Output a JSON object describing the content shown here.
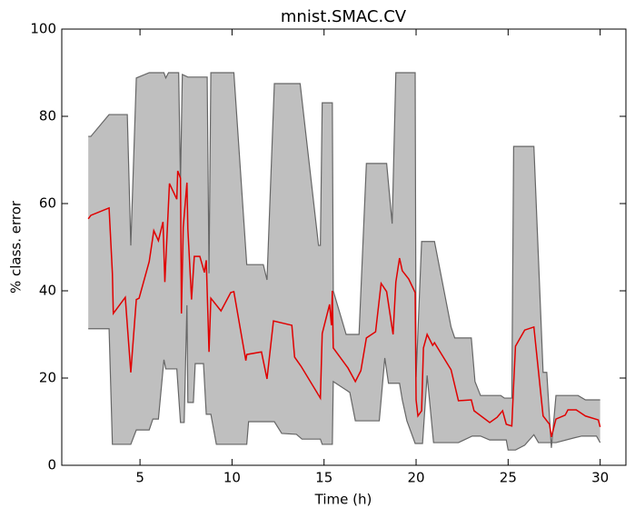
{
  "chart_data": {
    "type": "band-line",
    "title": "mnist.SMAC.CV",
    "xlabel": "Time (h)",
    "ylabel": "% class. error",
    "xlim": [
      0.75,
      31.4
    ],
    "ylim": [
      0,
      100
    ],
    "xticks": [
      5,
      10,
      15,
      20,
      25,
      30
    ],
    "yticks": [
      0,
      20,
      40,
      60,
      80,
      100
    ],
    "grid": false,
    "band_color": "#bfbfbf",
    "band_edge_color": "#666666",
    "upper": {
      "x": [
        2.19,
        2.33,
        3.32,
        4.31,
        4.5,
        4.8,
        5.5,
        6.3,
        6.4,
        6.55,
        7.1,
        7.2,
        7.3,
        7.6,
        8.65,
        8.75,
        8.85,
        10.1,
        10.8,
        11.7,
        11.9,
        12.3,
        13.7,
        14.7,
        14.8,
        14.9,
        15.45,
        15.5,
        16.2,
        16.9,
        17.3,
        18.4,
        18.7,
        18.9,
        19.95,
        20.0,
        20.3,
        21.0,
        21.9,
        22.1,
        23.0,
        23.2,
        23.5,
        24.6,
        24.8,
        25.2,
        25.3,
        26.4,
        26.9,
        27.1,
        27.35,
        27.6,
        28.8,
        29.2,
        30.0
      ],
      "values": [
        75.4,
        75.4,
        80.4,
        80.4,
        50.4,
        88.8,
        90,
        90,
        88.8,
        90,
        90,
        65,
        89.6,
        89,
        89,
        44,
        90,
        90,
        46,
        46,
        42.5,
        87.5,
        87.5,
        50.4,
        50.4,
        83.1,
        83.1,
        40,
        30,
        30,
        69.2,
        69.2,
        55.4,
        90,
        90,
        20.2,
        51.3,
        51.3,
        31.7,
        29.2,
        29.2,
        19.2,
        16,
        16,
        15.4,
        15.4,
        73.1,
        73.1,
        21.3,
        21.3,
        4,
        16,
        16,
        15,
        15
      ]
    },
    "lower": {
      "x": [
        2.19,
        3.32,
        3.5,
        4.5,
        4.8,
        5.5,
        5.7,
        6.0,
        6.3,
        6.4,
        7.0,
        7.2,
        7.4,
        7.55,
        7.6,
        7.9,
        8.0,
        8.45,
        8.6,
        8.85,
        9.15,
        10.8,
        10.9,
        12.3,
        12.7,
        13.5,
        13.8,
        14.8,
        14.9,
        15.45,
        15.5,
        16.4,
        16.7,
        18.0,
        18.3,
        18.5,
        19.1,
        19.25,
        19.5,
        19.95,
        20.35,
        20.6,
        20.95,
        22.3,
        23.05,
        23.5,
        24.0,
        24.9,
        25.0,
        25.4,
        25.9,
        26.4,
        26.65,
        27.6,
        28.6,
        29.0,
        29.8,
        30.0
      ],
      "values": [
        31.3,
        31.3,
        4.8,
        4.8,
        8.1,
        8.1,
        10.6,
        10.6,
        24.2,
        22.1,
        22.1,
        9.8,
        9.8,
        36.7,
        14.4,
        14.4,
        23.3,
        23.3,
        11.7,
        11.7,
        4.8,
        4.8,
        10,
        10,
        7.3,
        7.1,
        6,
        6,
        4.8,
        4.8,
        19.2,
        16.7,
        10.2,
        10.2,
        24.6,
        18.8,
        18.8,
        15,
        10.2,
        5,
        5,
        20.6,
        5.2,
        5.2,
        6.7,
        6.7,
        5.8,
        5.8,
        3.5,
        3.5,
        4.6,
        7,
        5.2,
        5.2,
        6.3,
        6.7,
        6.7,
        5.2
      ]
    },
    "line": {
      "color": "#e00000",
      "x": [
        2.19,
        2.33,
        3.32,
        3.5,
        3.55,
        4.2,
        4.5,
        4.8,
        4.95,
        5.5,
        5.75,
        6.0,
        6.25,
        6.35,
        6.6,
        7.0,
        7.05,
        7.2,
        7.25,
        7.35,
        7.55,
        7.6,
        7.8,
        7.95,
        8.25,
        8.5,
        8.6,
        8.75,
        8.85,
        9.4,
        9.93,
        10.1,
        10.75,
        10.8,
        11.6,
        11.9,
        12.25,
        13.25,
        13.4,
        13.75,
        14.8,
        14.9,
        15.3,
        15.4,
        15.45,
        15.5,
        16.3,
        16.7,
        17.0,
        17.3,
        17.8,
        18.1,
        18.4,
        18.75,
        18.9,
        19.1,
        19.25,
        19.6,
        19.95,
        20.0,
        20.1,
        20.3,
        20.4,
        20.6,
        20.9,
        21.0,
        21.9,
        22.3,
        23.0,
        23.15,
        24.0,
        24.4,
        24.7,
        24.9,
        25.2,
        25.3,
        25.4,
        25.9,
        26.4,
        26.9,
        27.25,
        27.35,
        27.6,
        28.1,
        28.25,
        28.7,
        29.2,
        29.9,
        30.0
      ],
      "values": [
        56.5,
        57.3,
        59,
        44,
        34.8,
        38.5,
        21.3,
        38,
        38.3,
        46.7,
        53.8,
        51.5,
        55.8,
        42,
        64.6,
        61,
        67.5,
        65.8,
        34.8,
        54.6,
        64.8,
        54.2,
        38,
        47.9,
        47.9,
        44.2,
        47,
        26,
        38.3,
        35.4,
        39.6,
        39.8,
        24,
        25.4,
        26,
        19.8,
        33.1,
        32.1,
        24.8,
        22.7,
        15.4,
        30.2,
        36.9,
        32.1,
        40,
        26.9,
        22.3,
        19.2,
        21.7,
        29.2,
        30.6,
        41.7,
        39.8,
        30,
        42,
        47.5,
        44.6,
        42.7,
        39.6,
        15,
        11.3,
        12.5,
        26.9,
        30,
        27.5,
        28.1,
        21.9,
        14.8,
        15,
        12.5,
        9.8,
        11,
        12.5,
        9.4,
        9,
        18.5,
        27.3,
        31,
        31.7,
        11.3,
        9.4,
        6.5,
        10.6,
        11.5,
        12.7,
        12.7,
        11.3,
        10.4,
        8.8
      ]
    }
  }
}
